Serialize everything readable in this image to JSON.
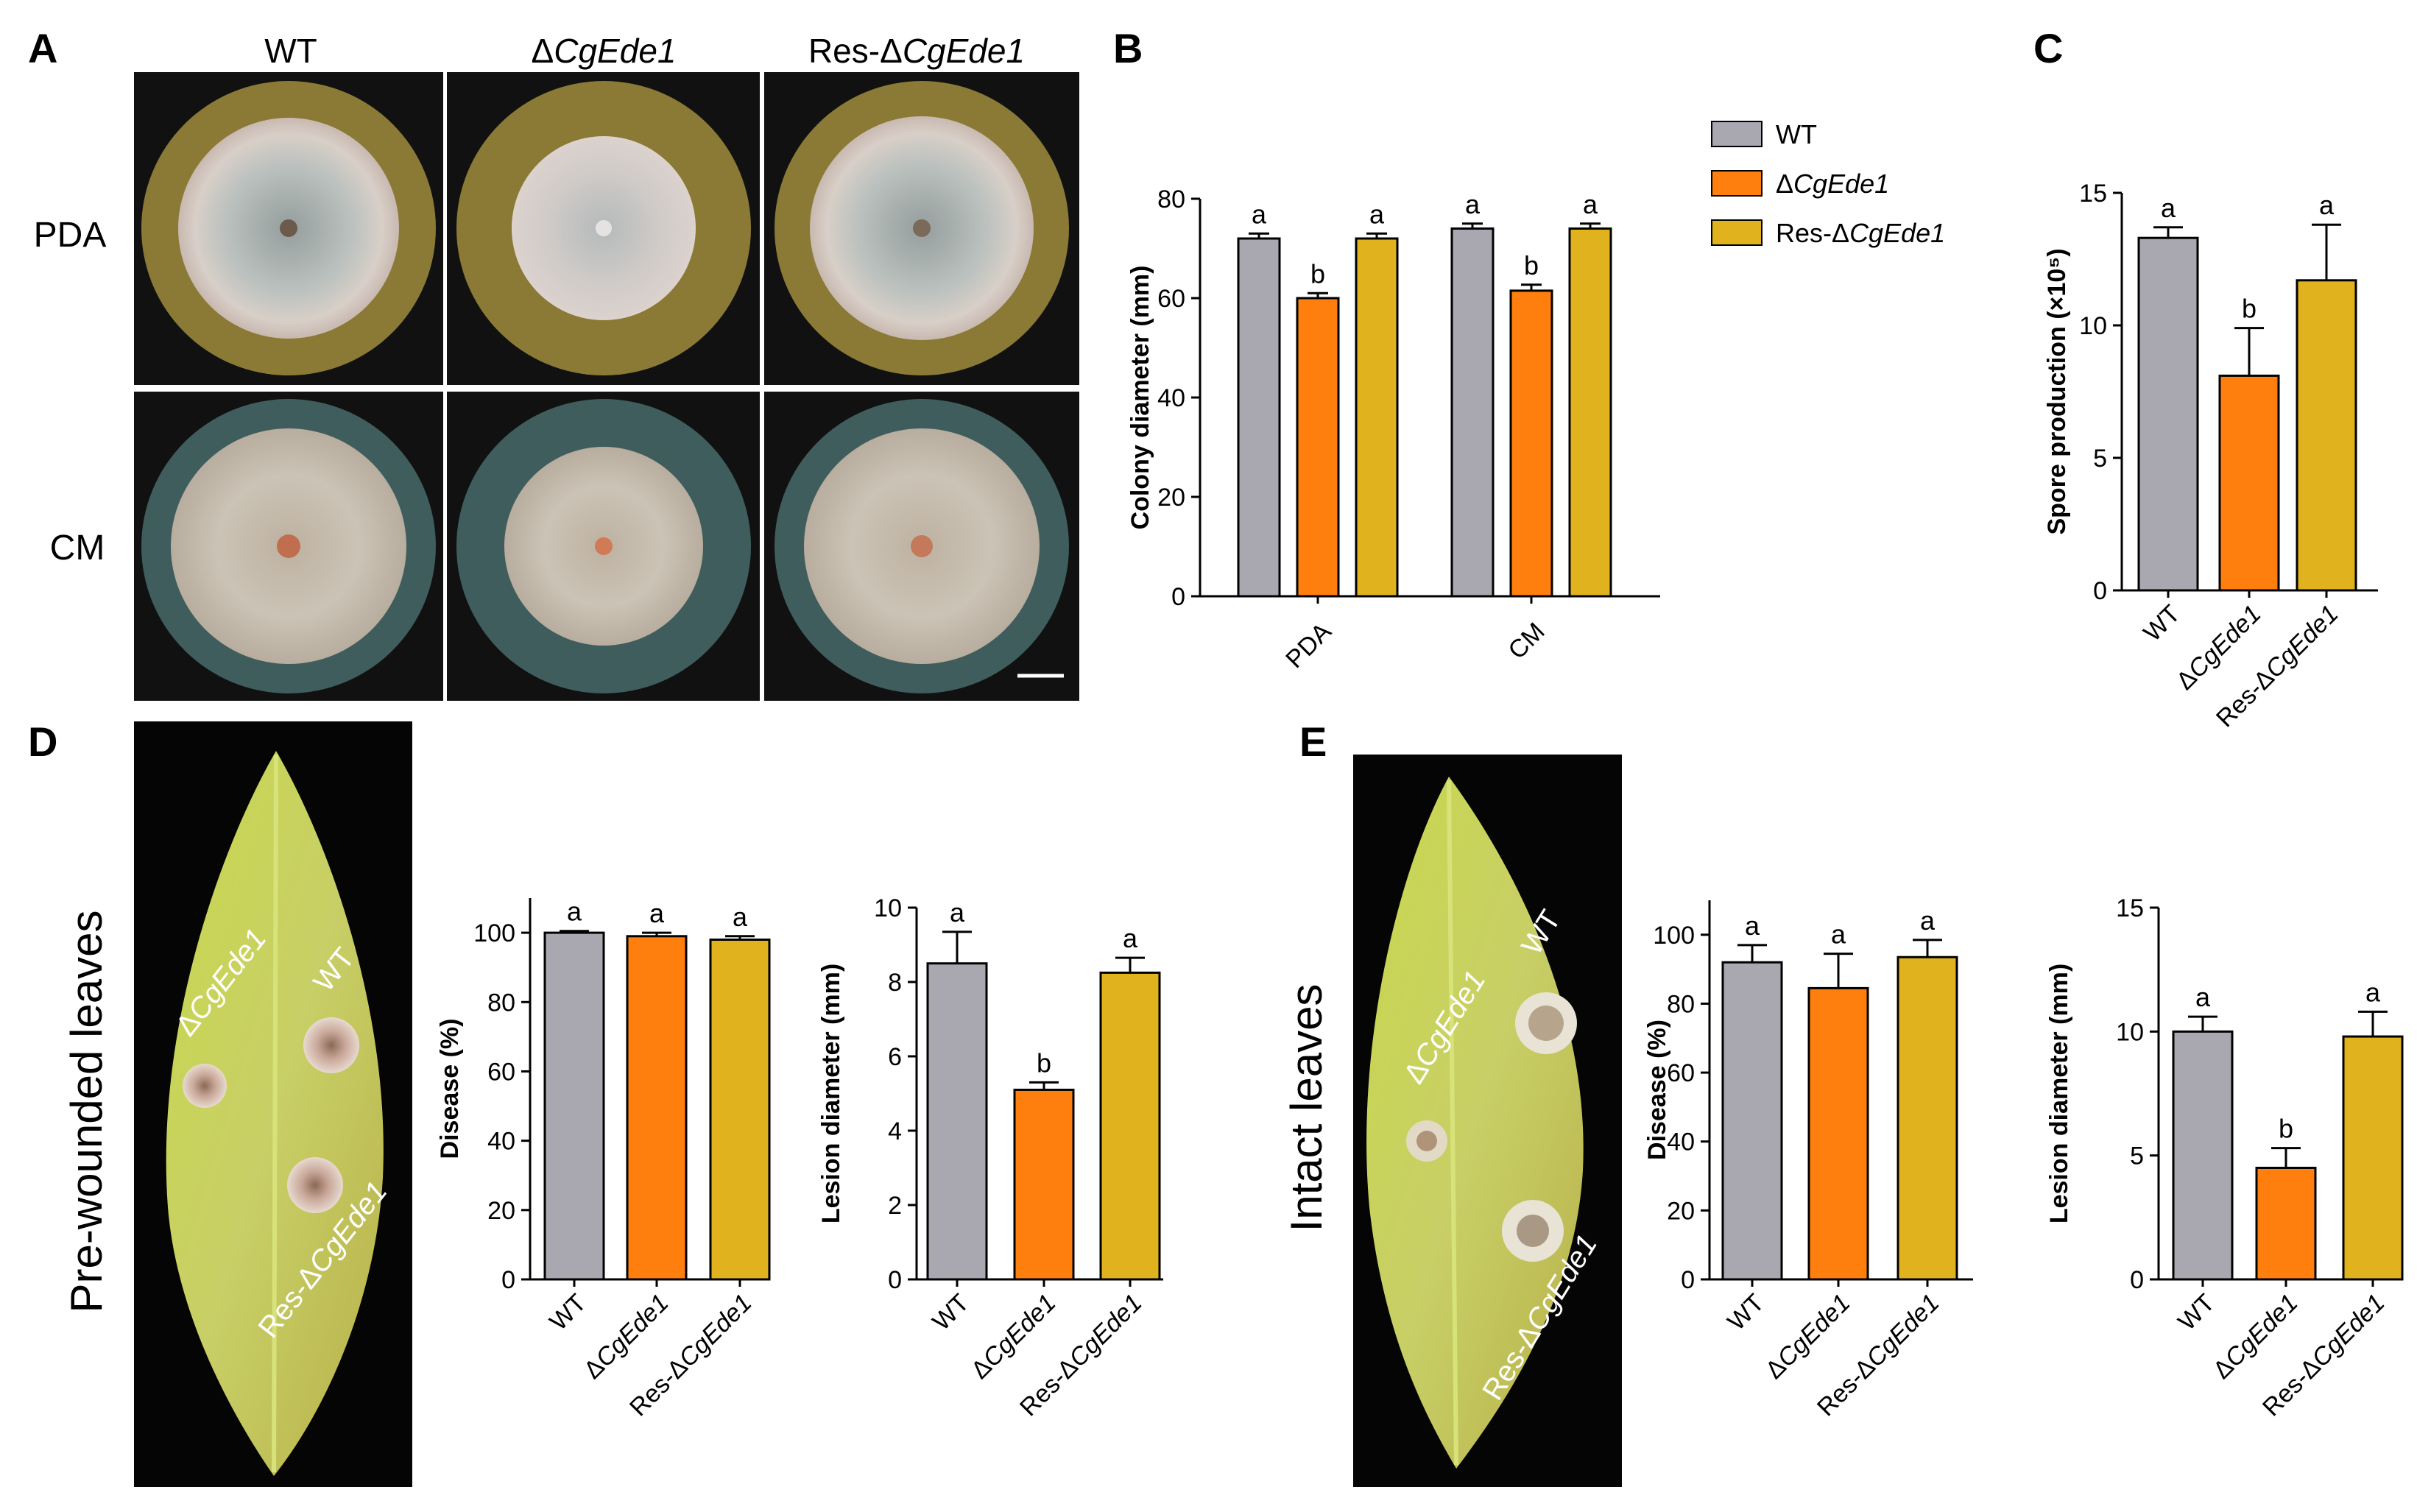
{
  "panels": {
    "A": "A",
    "B": "B",
    "C": "C",
    "D": "D",
    "E": "E"
  },
  "colors": {
    "WT": "#a9a7b0",
    "mutant": "#ff7f0e",
    "complemented": "#e0b31e",
    "agar_pda": "#8a7a35",
    "agar_cm": "#3f5d5c"
  },
  "strains": {
    "wt": "WT",
    "delta": "Δ",
    "gene": "CgEde1",
    "res_prefix": "Res-Δ"
  },
  "panelA": {
    "rows": [
      "PDA",
      "CM"
    ],
    "columns": [
      "WT",
      "ΔCgEde1",
      "Res-ΔCgEde1"
    ]
  },
  "panelD": {
    "side_label": "Pre-wounded leaves",
    "leaf_labels": [
      "ΔCgEde1",
      "WT",
      "Res-ΔCgEde1"
    ]
  },
  "panelE": {
    "side_label": "Intact leaves",
    "leaf_labels": [
      "ΔCgEde1",
      "WT",
      "Res-ΔCgEde1"
    ]
  },
  "legend": [
    "WT",
    "ΔCgEde1",
    "Res-ΔCgEde1"
  ],
  "chart_data": [
    {
      "id": "B",
      "type": "bar",
      "categories": [
        "PDA",
        "CM"
      ],
      "ylabel": "Colony diameter (mm)",
      "ylim": [
        0,
        80
      ],
      "yticks": [
        0,
        20,
        40,
        60,
        80
      ],
      "series": [
        {
          "name": "WT",
          "values": [
            72,
            74
          ],
          "errors": [
            1,
            1
          ],
          "letters": [
            "a",
            "a"
          ]
        },
        {
          "name": "ΔCgEde1",
          "values": [
            60,
            61.5
          ],
          "errors": [
            1,
            1.2
          ],
          "letters": [
            "b",
            "b"
          ]
        },
        {
          "name": "Res-ΔCgEde1",
          "values": [
            72,
            74
          ],
          "errors": [
            1,
            1
          ],
          "letters": [
            "a",
            "a"
          ]
        }
      ]
    },
    {
      "id": "C",
      "type": "bar",
      "categories": [
        "WT",
        "ΔCgEde1",
        "Res-ΔCgEde1"
      ],
      "ylabel": "Spore production (×10⁵)",
      "ylim": [
        0,
        15
      ],
      "yticks": [
        0,
        5,
        10,
        15
      ],
      "values": [
        13.3,
        8.1,
        11.7
      ],
      "errors": [
        0.4,
        1.8,
        2.1
      ],
      "letters": [
        "a",
        "b",
        "a"
      ]
    },
    {
      "id": "D1",
      "type": "bar",
      "categories": [
        "WT",
        "ΔCgEde1",
        "Res-ΔCgEde1"
      ],
      "ylabel": "Disease (%)",
      "ylim": [
        0,
        110
      ],
      "yticks": [
        0,
        20,
        40,
        60,
        80,
        100
      ],
      "values": [
        100,
        99,
        98
      ],
      "errors": [
        0.5,
        1,
        1
      ],
      "letters": [
        "a",
        "a",
        "a"
      ]
    },
    {
      "id": "D2",
      "type": "bar",
      "categories": [
        "WT",
        "ΔCgEde1",
        "Res-ΔCgEde1"
      ],
      "ylabel": "Lesion diameter (mm)",
      "ylim": [
        0,
        10
      ],
      "yticks": [
        0,
        2,
        4,
        6,
        8,
        10
      ],
      "values": [
        8.5,
        5.1,
        8.25
      ],
      "errors": [
        0.85,
        0.2,
        0.4
      ],
      "letters": [
        "a",
        "b",
        "a"
      ]
    },
    {
      "id": "E1",
      "type": "bar",
      "categories": [
        "WT",
        "ΔCgEde1",
        "Res-ΔCgEde1"
      ],
      "ylabel": "Disease (%)",
      "ylim": [
        0,
        110
      ],
      "yticks": [
        0,
        20,
        40,
        60,
        80,
        100
      ],
      "values": [
        92,
        84.5,
        93.5
      ],
      "errors": [
        5,
        10,
        5
      ],
      "letters": [
        "a",
        "a",
        "a"
      ]
    },
    {
      "id": "E2",
      "type": "bar",
      "categories": [
        "WT",
        "ΔCgEde1",
        "Res-ΔCgEde1"
      ],
      "ylabel": "Lesion diameter (mm)",
      "ylim": [
        0,
        15
      ],
      "yticks": [
        0,
        5,
        10,
        15
      ],
      "values": [
        10,
        4.5,
        9.8
      ],
      "errors": [
        0.6,
        0.8,
        1.0
      ],
      "letters": [
        "a",
        "b",
        "a"
      ]
    }
  ]
}
